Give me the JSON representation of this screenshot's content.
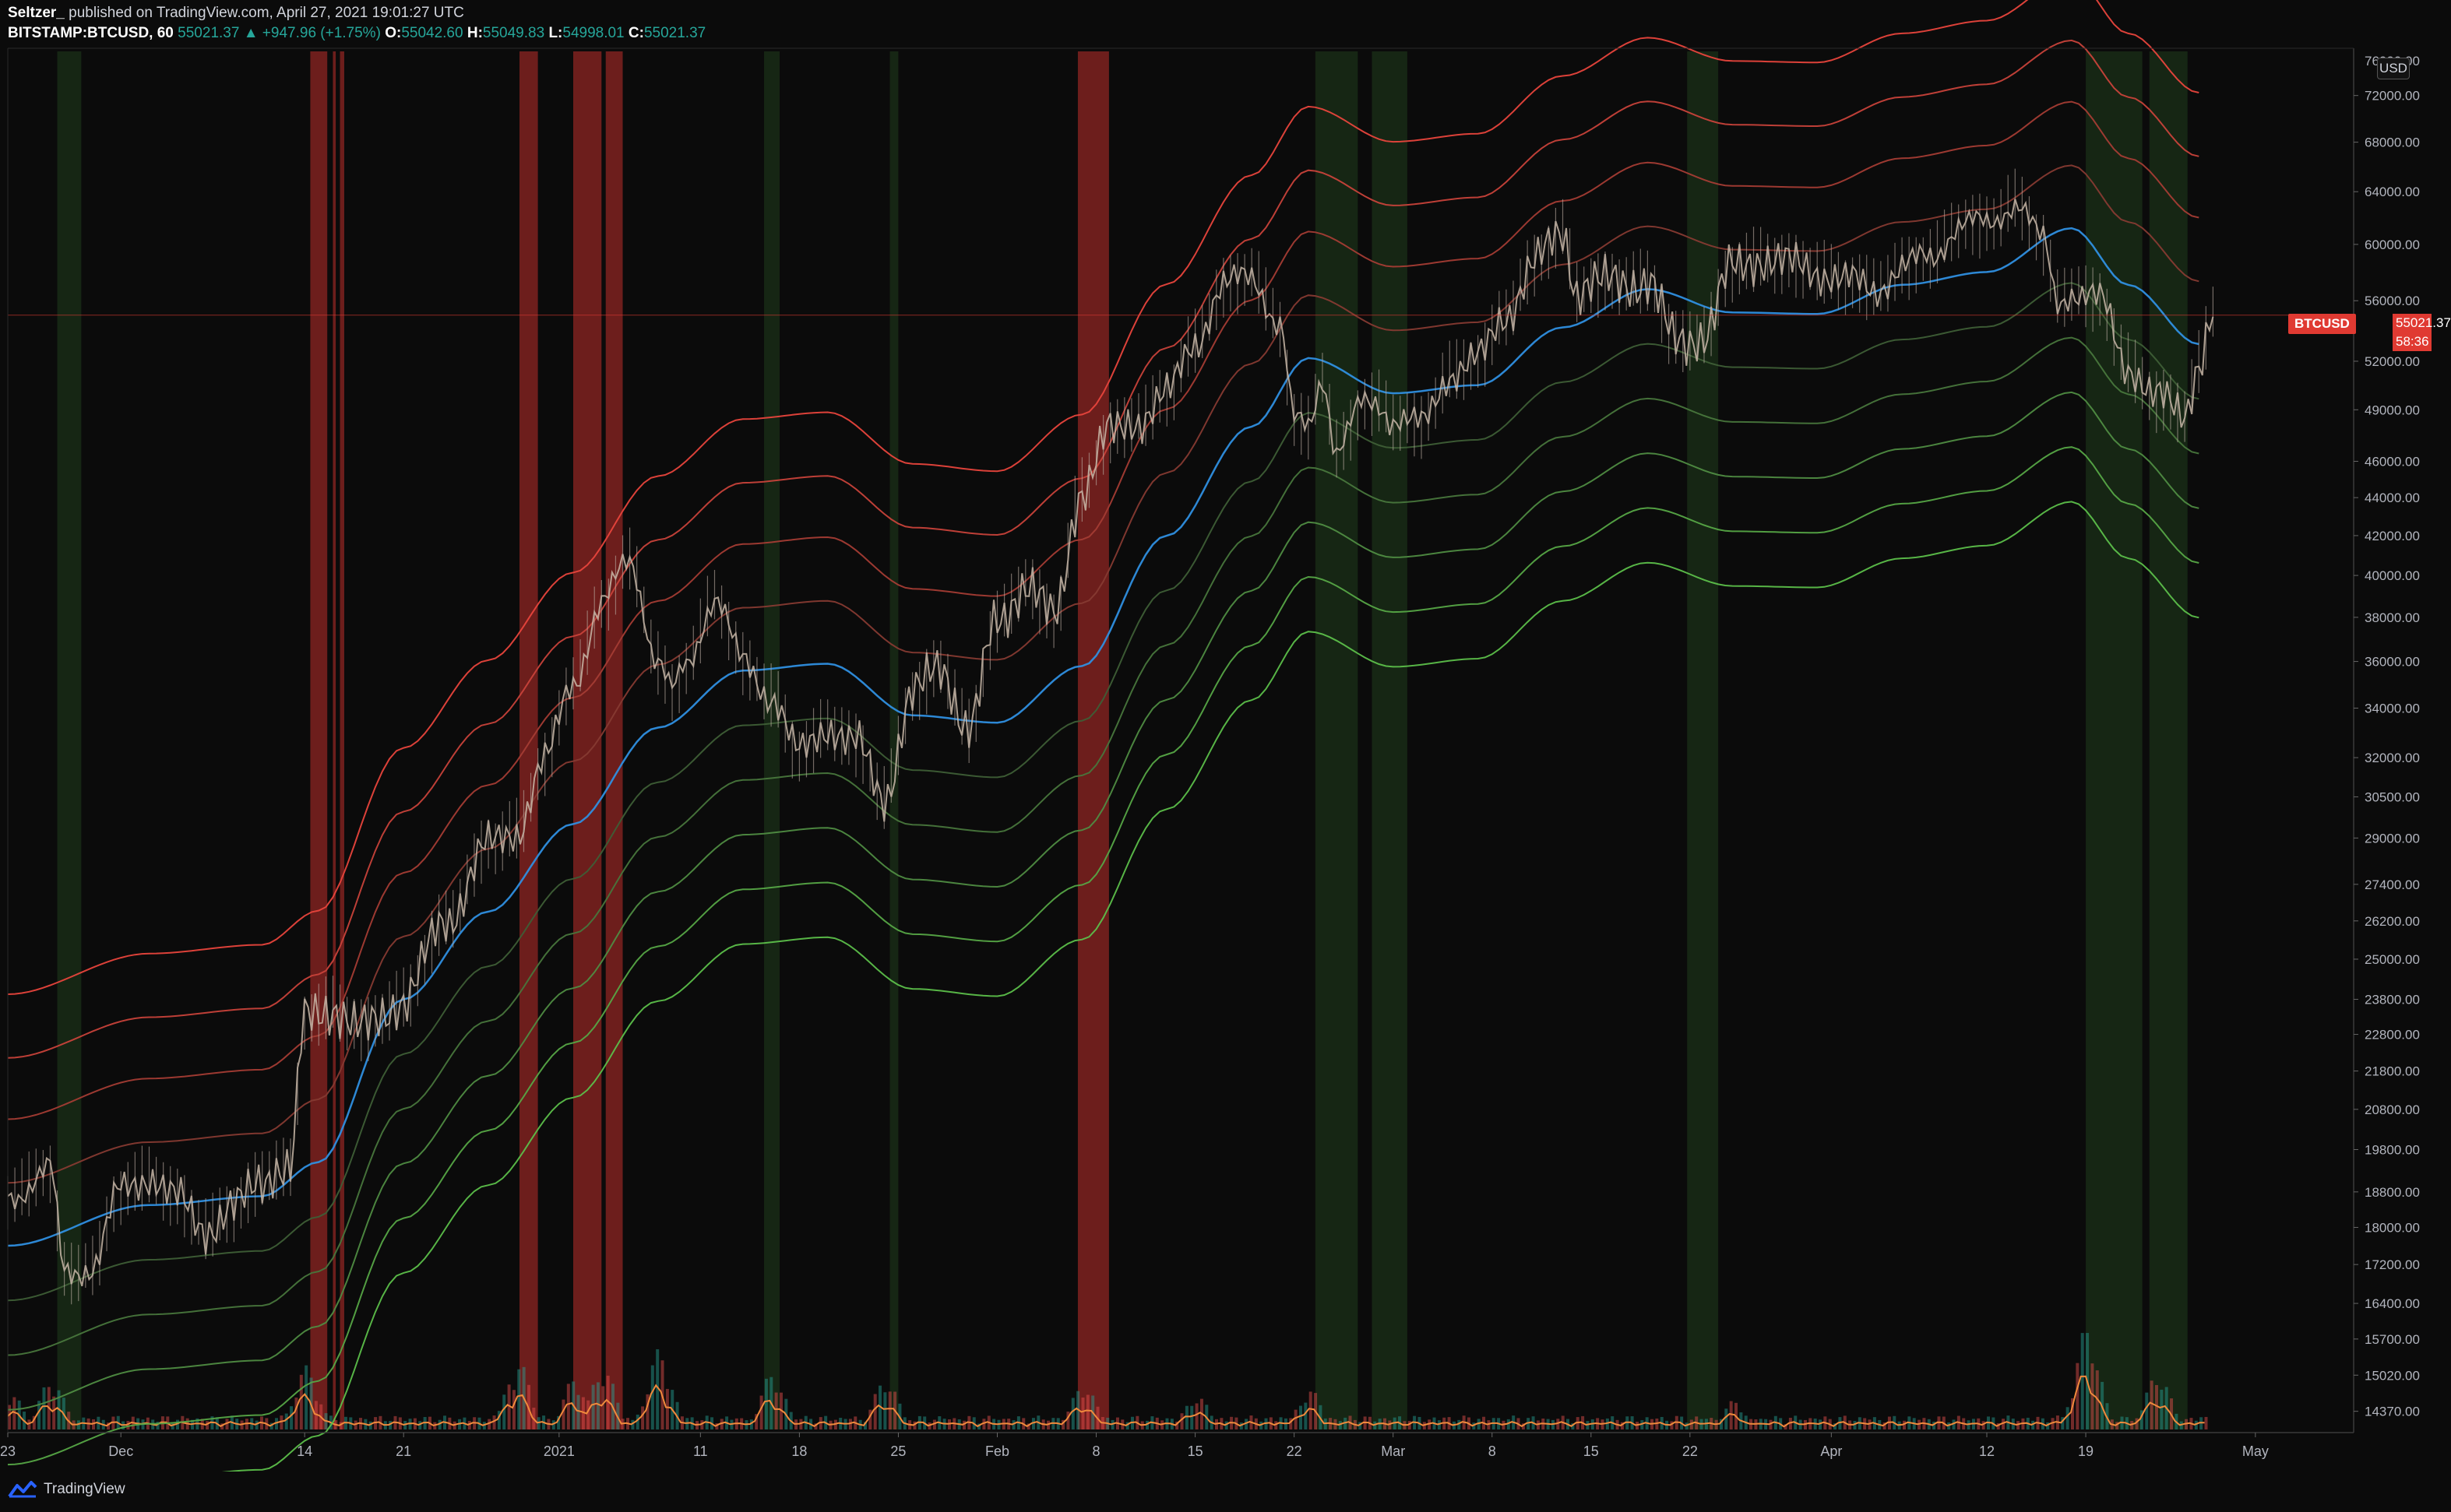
{
  "header": {
    "author": "Seltzer_",
    "published": "published on TradingView.com, April 27, 2021 19:01:27 UTC",
    "symbol": "BITSTAMP:BTCUSD, 60",
    "last": "55021.37",
    "change_arrow": "▲",
    "change": "+947.96 (+1.75%)",
    "o_label": "O:",
    "o_value": "55042.60",
    "h_label": "H:",
    "h_value": "55049.83",
    "l_label": "L:",
    "l_value": "54998.01",
    "c_label": "C:",
    "c_value": "55021.37"
  },
  "footer": {
    "brand": "TradingView",
    "logo_icon": "tradingview-logo-icon"
  },
  "price_axis": {
    "currency": "USD"
  },
  "last_price_tag": {
    "symbol": "BTCUSD",
    "price": "55021.37",
    "countdown": "58:36"
  },
  "colors": {
    "background": "#0b0b0b",
    "up_text": "#26a69a",
    "mid_band": "#2f8fe0",
    "upper_band_outer": "#e8453c",
    "lower_band_outer": "#5cbf4a",
    "red_zone": "#c0302c",
    "green_zone": "#2a5a24",
    "volume_ma": "#f08a3c"
  },
  "chart_data": {
    "type": "line",
    "title": "",
    "xlabel": "",
    "ylabel": "",
    "log_scale": true,
    "ylim": [
      14000,
      76000
    ],
    "grid": false,
    "y_ticks": [
      72000,
      68000,
      64000,
      60000,
      56000,
      52000,
      49000,
      46000,
      44000,
      42000,
      40000,
      38000,
      36000,
      34000,
      32000,
      30500,
      29000,
      27400,
      26200,
      25000,
      23800,
      22800,
      21800,
      20800,
      19800,
      18800,
      18000,
      17200,
      16400,
      15700,
      15020,
      14370
    ],
    "y_tick_labels": [
      "72000.00",
      "68000.00",
      "64000.00",
      "60000.00",
      "56000.00",
      "52000.00",
      "49000.00",
      "46000.00",
      "44000.00",
      "42000.00",
      "40000.00",
      "38000.00",
      "36000.00",
      "34000.00",
      "32000.00",
      "30500.00",
      "29000.00",
      "27400.00",
      "26200.00",
      "25000.00",
      "23800.00",
      "22800.00",
      "21800.00",
      "20800.00",
      "19800.00",
      "18800.00",
      "18000.00",
      "17200.00",
      "16400.00",
      "15700.00",
      "15020.00",
      "14370.00"
    ],
    "top_tick_partial": "76000.00",
    "x_ticks": [
      {
        "label": "23",
        "day": 0
      },
      {
        "label": "Dec",
        "day": 8
      },
      {
        "label": "14",
        "day": 21
      },
      {
        "label": "21",
        "day": 28
      },
      {
        "label": "2021",
        "day": 39
      },
      {
        "label": "11",
        "day": 49
      },
      {
        "label": "18",
        "day": 56
      },
      {
        "label": "25",
        "day": 63
      },
      {
        "label": "Feb",
        "day": 70
      },
      {
        "label": "8",
        "day": 77
      },
      {
        "label": "15",
        "day": 84
      },
      {
        "label": "22",
        "day": 91
      },
      {
        "label": "Mar",
        "day": 98
      },
      {
        "label": "8",
        "day": 105
      },
      {
        "label": "15",
        "day": 112
      },
      {
        "label": "22",
        "day": 119
      },
      {
        "label": "Apr",
        "day": 129
      },
      {
        "label": "12",
        "day": 140
      },
      {
        "label": "19",
        "day": 147
      },
      {
        "label": "May",
        "day": 159
      }
    ],
    "mid_band": {
      "name": "",
      "days": [
        0,
        10,
        18,
        22,
        28,
        34,
        40,
        46,
        52,
        58,
        64,
        70,
        76,
        82,
        88,
        92,
        98,
        104,
        110,
        116,
        122,
        128,
        134,
        140,
        146,
        150,
        155
      ],
      "values": [
        17600,
        18500,
        18700,
        19500,
        23800,
        26500,
        29500,
        33200,
        35600,
        35900,
        33700,
        33400,
        35800,
        42000,
        48000,
        52200,
        50000,
        50500,
        54200,
        56800,
        55200,
        55100,
        57100,
        58000,
        61200,
        57100,
        53100
      ]
    },
    "band_offsets": [
      0.308,
      0.23,
      0.155,
      0.077,
      0,
      -0.067,
      -0.134,
      -0.201,
      -0.268,
      -0.335
    ],
    "price": {
      "name": "BTCUSD",
      "days": [
        0,
        3,
        4,
        6,
        8,
        10,
        12,
        14,
        16,
        18,
        19,
        20,
        21,
        23,
        25,
        28,
        31,
        34,
        36,
        38,
        40,
        42,
        44,
        46,
        47,
        48,
        50,
        52,
        54,
        56,
        58,
        60,
        62,
        64,
        66,
        68,
        70,
        72,
        74,
        76,
        78,
        80,
        82,
        84,
        86,
        88,
        90,
        91,
        92,
        93,
        94,
        96,
        97,
        98,
        100,
        102,
        104,
        106,
        108,
        110,
        111,
        112,
        114,
        116,
        118,
        120,
        122,
        124,
        126,
        128,
        130,
        132,
        134,
        136,
        138,
        140,
        142,
        144,
        145,
        146,
        147,
        148,
        150,
        152,
        154,
        155,
        156
      ],
      "values": [
        18700,
        19300,
        17000,
        17200,
        18800,
        19200,
        18600,
        18000,
        18400,
        19100,
        19400,
        19300,
        23200,
        23600,
        22900,
        23800,
        26200,
        28700,
        29300,
        31800,
        35200,
        38500,
        40800,
        36000,
        34600,
        35800,
        39000,
        35900,
        34600,
        32100,
        33300,
        32500,
        30500,
        34500,
        35800,
        33100,
        37800,
        39600,
        37900,
        44500,
        47600,
        48500,
        49800,
        53400,
        56800,
        57900,
        54300,
        48200,
        48000,
        51200,
        46600,
        49300,
        49500,
        48500,
        48000,
        51300,
        52000,
        55200,
        58500,
        61000,
        56800,
        57100,
        57300,
        57400,
        53200,
        53800,
        58200,
        59100,
        58500,
        58200,
        57300,
        56900,
        58200,
        59100,
        61400,
        61400,
        63300,
        60100,
        56000,
        56800,
        56300,
        55900,
        51800,
        49600,
        48900,
        52000,
        55021
      ]
    },
    "last_price": 55021.37,
    "red_zones_days": [
      [
        21.4,
        22.6
      ],
      [
        23.0,
        23.2
      ],
      [
        23.5,
        23.8
      ],
      [
        36.2,
        37.5
      ],
      [
        40.0,
        42.0
      ],
      [
        42.3,
        43.5
      ],
      [
        75.7,
        77.9
      ]
    ],
    "green_zones_days": [
      [
        3.5,
        5.2
      ],
      [
        53.5,
        54.6
      ],
      [
        62.4,
        63.0
      ],
      [
        92.5,
        95.5
      ],
      [
        96.5,
        99.0
      ],
      [
        118.8,
        121.0
      ],
      [
        147.0,
        151.0
      ],
      [
        151.5,
        154.2
      ]
    ],
    "volume": {
      "spike_days": [
        0,
        3,
        21,
        36,
        40,
        42,
        46,
        54,
        62,
        76,
        84,
        92,
        122,
        147,
        152
      ],
      "spike_levels": [
        0.35,
        0.45,
        0.55,
        0.6,
        0.45,
        0.55,
        0.7,
        0.5,
        0.45,
        0.4,
        0.3,
        0.35,
        0.25,
        0.9,
        0.5
      ]
    }
  }
}
